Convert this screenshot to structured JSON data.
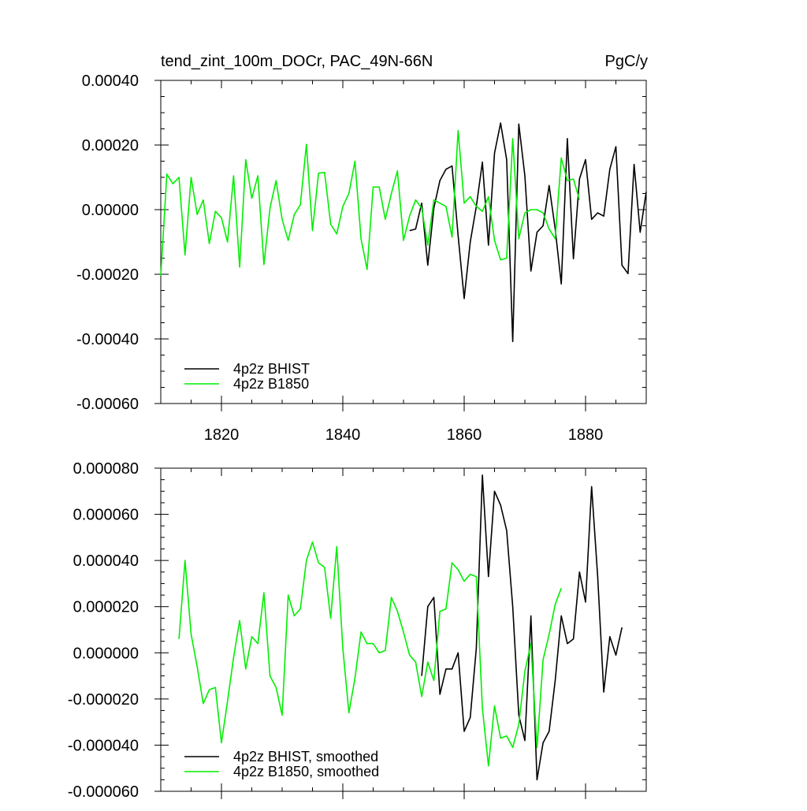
{
  "chart_data": [
    {
      "type": "line",
      "title": "tend_zint_100m_DOCr, PAC_49N-66N",
      "units": "PgC/y",
      "xlim": [
        1810,
        1890
      ],
      "ylim": [
        -0.0006,
        0.0004
      ],
      "xticks": [
        1820,
        1840,
        1860,
        1880
      ],
      "xtick_labels": [
        "1820",
        "1840",
        "1860",
        "1880"
      ],
      "yticks": [
        -0.0006,
        -0.0004,
        -0.0002,
        0,
        0.0002,
        0.0004
      ],
      "ytick_labels": [
        "-0.00060",
        "-0.00040",
        "-0.00020",
        "0.00000",
        "0.00020",
        "0.00040"
      ],
      "legend_position": "bottom-left",
      "series": [
        {
          "name": "4p2z BHIST",
          "color": "#000000",
          "x": [
            1851,
            1852,
            1853,
            1854,
            1855,
            1856,
            1857,
            1858,
            1859,
            1860,
            1861,
            1862,
            1863,
            1864,
            1865,
            1866,
            1867,
            1868,
            1869,
            1870,
            1871,
            1872,
            1873,
            1874,
            1875,
            1876,
            1877,
            1878,
            1879,
            1880,
            1881,
            1882,
            1883,
            1884,
            1885,
            1886,
            1887,
            1888,
            1889,
            1890
          ],
          "y": [
            -6.5e-05,
            -6e-05,
            2e-05,
            -0.000172,
            5e-06,
            9e-05,
            0.000125,
            0.000135,
            -8e-05,
            -0.000275,
            -0.0001,
            1e-05,
            0.000147,
            -0.00011,
            0.000175,
            0.000268,
            0.000155,
            -0.000408,
            0.000265,
            0.000105,
            -0.00019,
            -7e-05,
            -5e-05,
            7.5e-05,
            -6e-05,
            -0.00023,
            0.00022,
            -0.000152,
            9.5e-05,
            0.000155,
            -3e-05,
            -1e-05,
            -2e-05,
            0.000125,
            0.000195,
            -0.000172,
            -0.000198,
            0.00014,
            -7e-05,
            5.5e-05
          ]
        },
        {
          "name": "4p2z B1850",
          "color": "#00ee00",
          "x": [
            1810,
            1811,
            1812,
            1813,
            1814,
            1815,
            1816,
            1817,
            1818,
            1819,
            1820,
            1821,
            1822,
            1823,
            1824,
            1825,
            1826,
            1827,
            1828,
            1829,
            1830,
            1831,
            1832,
            1833,
            1834,
            1835,
            1836,
            1837,
            1838,
            1839,
            1840,
            1841,
            1842,
            1843,
            1844,
            1845,
            1846,
            1847,
            1848,
            1849,
            1850,
            1851,
            1852,
            1853,
            1854,
            1855,
            1856,
            1857,
            1858,
            1859,
            1860,
            1861,
            1862,
            1863,
            1864,
            1865,
            1866,
            1867,
            1868,
            1869,
            1870,
            1871,
            1872,
            1873,
            1874,
            1875,
            1876,
            1877,
            1878,
            1879,
            1880
          ],
          "y": [
            -0.000205,
            0.00011,
            8e-05,
            0.0001,
            -0.00014,
            0.0001,
            -1.5e-05,
            3e-05,
            -0.000105,
            -5e-06,
            -2.5e-05,
            -0.0001,
            0.000105,
            -0.000178,
            0.000155,
            3.5e-05,
            0.000105,
            -0.00017,
            5e-06,
            9e-05,
            -3e-05,
            -9.5e-05,
            -1.5e-05,
            1.5e-05,
            0.000202,
            -6.5e-05,
            0.000113,
            0.000115,
            -4.5e-05,
            -7.5e-05,
            1e-05,
            5e-05,
            0.00015,
            -9e-05,
            -0.000185,
            7e-05,
            7e-05,
            -3e-05,
            5e-05,
            0.00012,
            -9.5e-05,
            -2e-05,
            3e-05,
            5e-06,
            -0.00011,
            3e-05,
            2e-05,
            1e-05,
            -8.5e-05,
            0.000245,
            2e-05,
            4e-05,
            1e-05,
            -5e-06,
            4e-05,
            -9.5e-05,
            -0.000155,
            -0.00015,
            0.00022,
            -9e-05,
            -1e-05,
            0,
            0,
            -1e-05,
            -6e-05,
            -9e-05,
            0.00016,
            9e-05,
            9.5e-05,
            3e-05,
            null
          ]
        }
      ]
    },
    {
      "type": "line",
      "xlim": [
        1810,
        1890
      ],
      "ylim": [
        -6e-05,
        8e-05
      ],
      "xticks": [
        1820,
        1840,
        1860,
        1880
      ],
      "yticks": [
        -6e-05,
        -4e-05,
        -2e-05,
        0,
        2e-05,
        4e-05,
        6e-05,
        8e-05
      ],
      "ytick_labels": [
        "-0.000060",
        "-0.000040",
        "-0.000020",
        "0.000000",
        "0.000020",
        "0.000040",
        "0.000060",
        "0.000080"
      ],
      "legend_position": "bottom-left",
      "series": [
        {
          "name": "4p2z BHIST, smoothed",
          "color": "#000000",
          "x": [
            1853,
            1854,
            1855,
            1856,
            1857,
            1858,
            1859,
            1860,
            1861,
            1862,
            1863,
            1864,
            1865,
            1866,
            1867,
            1868,
            1869,
            1870,
            1871,
            1872,
            1873,
            1874,
            1875,
            1876,
            1877,
            1878,
            1879,
            1880,
            1881,
            1882,
            1883,
            1884,
            1885,
            1886,
            1887
          ],
          "y": [
            -1e-05,
            2e-05,
            2.4e-05,
            -1.8e-05,
            -7e-06,
            -7e-06,
            0,
            -3.4e-05,
            -2.8e-05,
            2e-06,
            7.7e-05,
            3.3e-05,
            7e-05,
            6.4e-05,
            5.3e-05,
            2e-05,
            -2.7e-05,
            -3.8e-05,
            1.6e-05,
            -5.5e-05,
            -3.9e-05,
            -3.4e-05,
            -1.2e-05,
            1.6e-05,
            4e-06,
            6e-06,
            3.5e-05,
            2.2e-05,
            7.2e-05,
            3.3e-05,
            -1.7e-05,
            7e-06,
            -1e-06,
            1.1e-05,
            null
          ]
        },
        {
          "name": "4p2z B1850, smoothed",
          "color": "#00ee00",
          "x": [
            1813,
            1814,
            1815,
            1816,
            1817,
            1818,
            1819,
            1820,
            1821,
            1822,
            1823,
            1824,
            1825,
            1826,
            1827,
            1828,
            1829,
            1830,
            1831,
            1832,
            1833,
            1834,
            1835,
            1836,
            1837,
            1838,
            1839,
            1840,
            1841,
            1842,
            1843,
            1844,
            1845,
            1846,
            1847,
            1848,
            1849,
            1850,
            1851,
            1852,
            1853,
            1854,
            1855,
            1856,
            1857,
            1858,
            1859,
            1860,
            1861,
            1862,
            1863,
            1864,
            1865,
            1866,
            1867,
            1868,
            1869,
            1870,
            1871,
            1872,
            1873,
            1874,
            1875,
            1876,
            1877
          ],
          "y": [
            6e-06,
            4e-05,
            8e-06,
            -6e-06,
            -2.2e-05,
            -1.6e-05,
            -1.5e-05,
            -3.9e-05,
            -2.1e-05,
            -2e-06,
            1.4e-05,
            -7e-06,
            7e-06,
            4e-06,
            2.6e-05,
            -1e-05,
            -1.5e-05,
            -2.7e-05,
            2.5e-05,
            1.6e-05,
            1.9e-05,
            4e-05,
            4.8e-05,
            3.9e-05,
            3.7e-05,
            1.5e-05,
            4.6e-05,
            2e-06,
            -2.6e-05,
            -1.1e-05,
            9e-06,
            4e-06,
            4e-06,
            0,
            1e-06,
            2.4e-05,
            1.8e-05,
            9e-06,
            -1e-06,
            -4e-06,
            -1.9e-05,
            -4e-06,
            -1.2e-05,
            1.8e-05,
            1.9e-05,
            3.9e-05,
            3.6e-05,
            3.1e-05,
            3.4e-05,
            3.3e-05,
            -2.4e-05,
            -4.9e-05,
            -2.3e-05,
            -3.7e-05,
            -3.6e-05,
            -4.1e-05,
            -3.1e-05,
            -8e-06,
            4e-06,
            -4.1e-05,
            -3e-06,
            8e-06,
            2.1e-05,
            2.8e-05,
            null
          ]
        }
      ]
    }
  ]
}
